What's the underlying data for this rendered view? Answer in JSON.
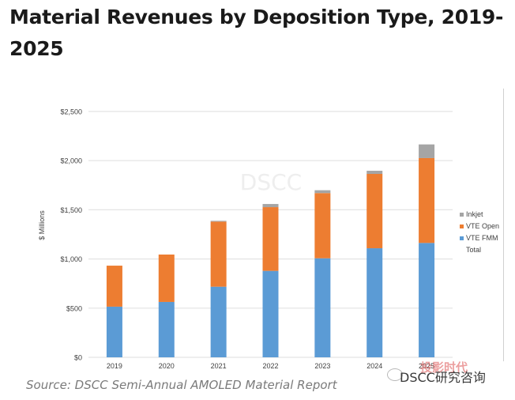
{
  "title": "Material Revenues by Deposition Type, 2019-2025",
  "source": "Source: DSCC Semi-Annual AMOLED Material Report",
  "watermark": {
    "chart_text": "DSCC",
    "corner_text": "DSCC研究咨询",
    "corner_overlay": "投影时代"
  },
  "colors": {
    "vte_fmm": "#5b9bd5",
    "vte_open": "#ed7d31",
    "inkjet": "#a5a5a5",
    "grid": "#e3e3e3",
    "axis_text": "#404040"
  },
  "chart_data": {
    "type": "bar",
    "stacked": true,
    "title": "Material Revenues by Deposition Type, 2019-2025",
    "xlabel": "",
    "ylabel": "$ Millions",
    "categories": [
      "2019",
      "2020",
      "2021",
      "2022",
      "2023",
      "2024",
      "2025"
    ],
    "series": [
      {
        "name": "VTE FMM",
        "color": "#5b9bd5",
        "values": [
          515,
          563,
          718,
          879,
          1007,
          1109,
          1163
        ]
      },
      {
        "name": "VTE Open",
        "color": "#ed7d31",
        "values": [
          417,
          482,
          662,
          648,
          663,
          756,
          863
        ]
      },
      {
        "name": "Inkjet",
        "color": "#a5a5a5",
        "values": [
          0,
          0,
          8,
          32,
          29,
          32,
          139
        ]
      }
    ],
    "totals": [
      932,
      1045,
      1388,
      1559,
      1699,
      1897,
      2165
    ],
    "ylim": [
      0,
      2500
    ],
    "yticks": [
      0,
      500,
      1000,
      1500,
      2000,
      2500
    ],
    "ytick_labels": [
      "$0",
      "$500",
      "$1,000",
      "$1,500",
      "$2,000",
      "$2,500"
    ],
    "grid": true,
    "legend": {
      "placement": "right",
      "entries": [
        {
          "name": "Inkjet",
          "color": "#a5a5a5",
          "marker": true
        },
        {
          "name": "VTE Open",
          "color": "#ed7d31",
          "marker": true
        },
        {
          "name": "VTE FMM",
          "color": "#5b9bd5",
          "marker": true
        },
        {
          "name": "Total",
          "color": null,
          "marker": false
        }
      ]
    }
  }
}
